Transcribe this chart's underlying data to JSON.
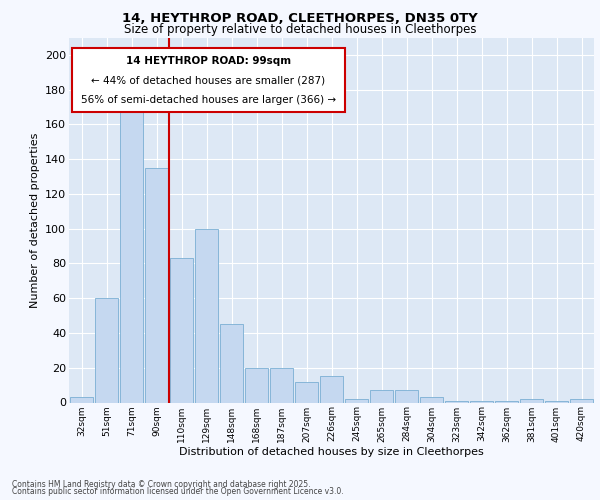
{
  "title_line1": "14, HEYTHROP ROAD, CLEETHORPES, DN35 0TY",
  "title_line2": "Size of property relative to detached houses in Cleethorpes",
  "xlabel": "Distribution of detached houses by size in Cleethorpes",
  "ylabel": "Number of detached properties",
  "footer_line1": "Contains HM Land Registry data © Crown copyright and database right 2025.",
  "footer_line2": "Contains public sector information licensed under the Open Government Licence v3.0.",
  "annotation_line1": "14 HEYTHROP ROAD: 99sqm",
  "annotation_line2": "← 44% of detached houses are smaller (287)",
  "annotation_line3": "56% of semi-detached houses are larger (366) →",
  "bar_categories": [
    "32sqm",
    "51sqm",
    "71sqm",
    "90sqm",
    "110sqm",
    "129sqm",
    "148sqm",
    "168sqm",
    "187sqm",
    "207sqm",
    "226sqm",
    "245sqm",
    "265sqm",
    "284sqm",
    "304sqm",
    "323sqm",
    "342sqm",
    "362sqm",
    "381sqm",
    "401sqm",
    "420sqm"
  ],
  "bar_values": [
    3,
    60,
    167,
    135,
    83,
    100,
    45,
    20,
    20,
    12,
    15,
    2,
    7,
    7,
    3,
    1,
    1,
    1,
    2,
    1,
    2
  ],
  "bar_color": "#c5d8f0",
  "bar_edge_color": "#7aafd4",
  "vline_color": "#cc0000",
  "vline_x": 3.5,
  "annotation_box_color": "#cc0000",
  "plot_bg_color": "#dde8f5",
  "grid_color": "#ffffff",
  "fig_bg_color": "#f5f8ff",
  "ylim": [
    0,
    210
  ],
  "yticks": [
    0,
    20,
    40,
    60,
    80,
    100,
    120,
    140,
    160,
    180,
    200
  ]
}
